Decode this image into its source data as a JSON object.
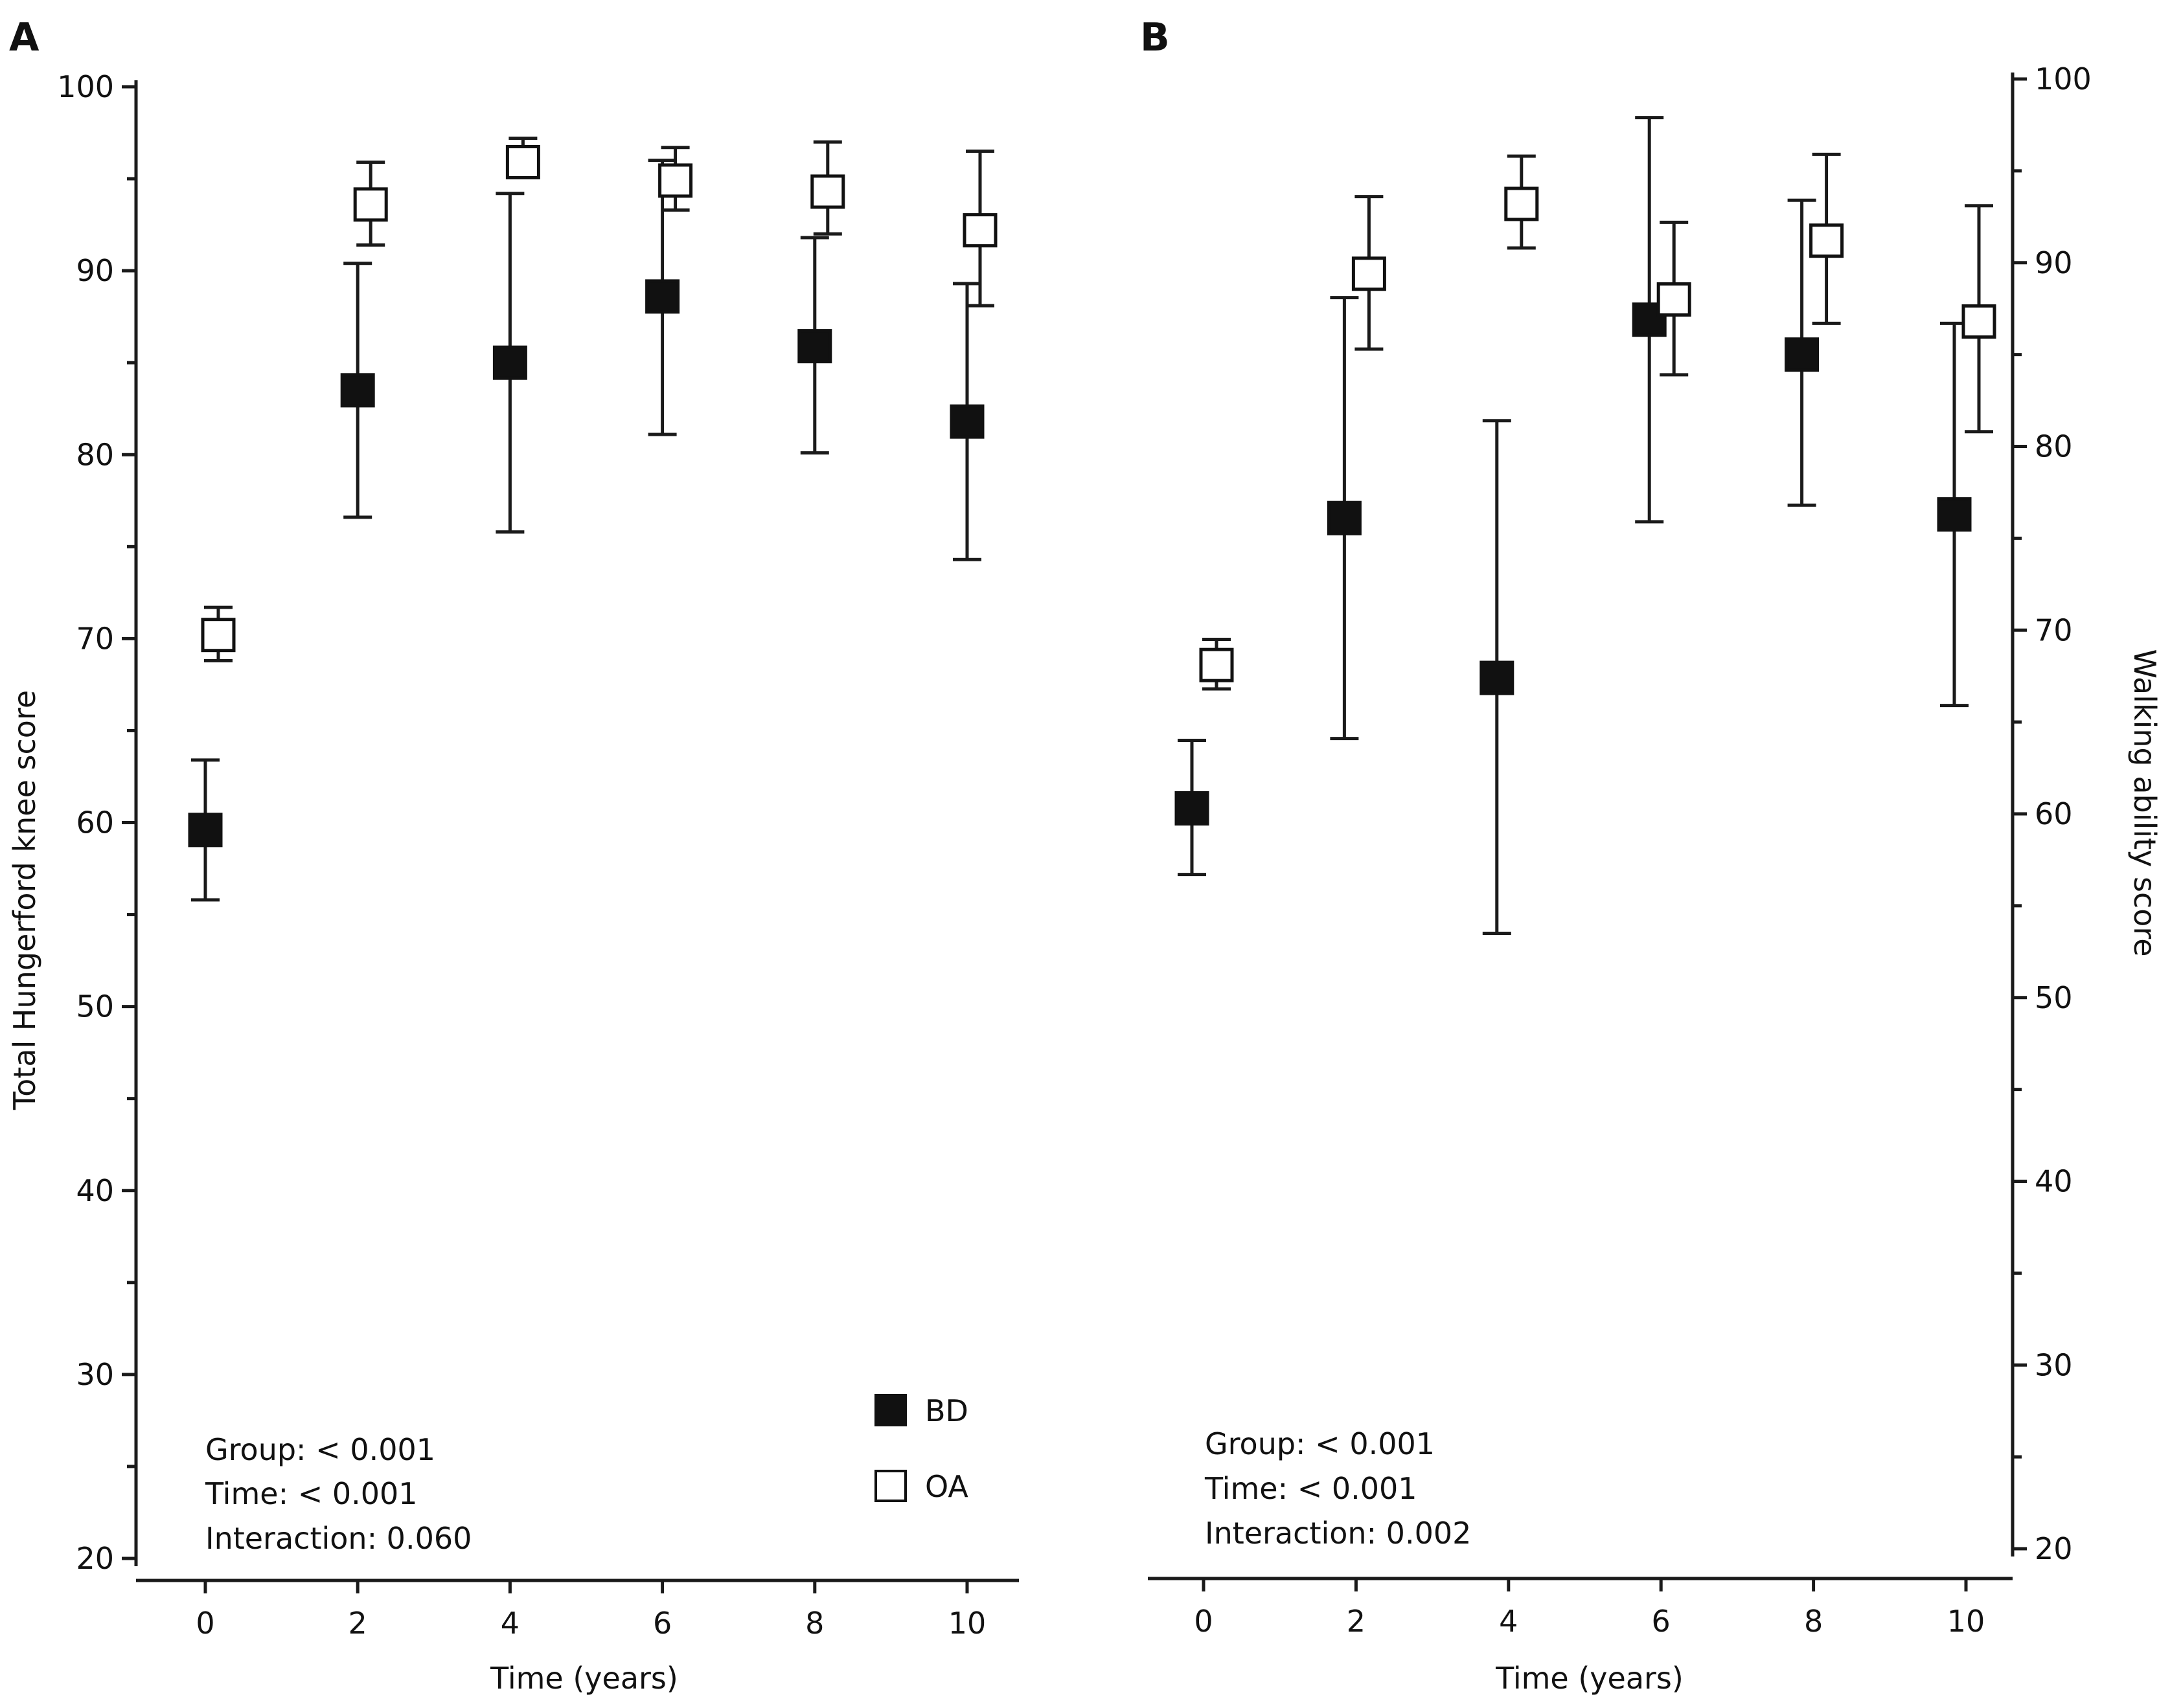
{
  "chart_data": [
    {
      "panel_label": "A",
      "type": "scatter",
      "xlabel": "Time (years)",
      "ylabel": "Total Hungerford knee score",
      "xlim": [
        0,
        10
      ],
      "ylim": [
        20,
        100
      ],
      "x_ticks": [
        "0",
        "2",
        "4",
        "6",
        "8",
        "10"
      ],
      "y_ticks": [
        "20",
        "30",
        "40",
        "50",
        "60",
        "70",
        "80",
        "90",
        "100"
      ],
      "y_axis_side": "left",
      "series": [
        {
          "name": "BD",
          "marker": "filled-square",
          "points": [
            {
              "x": 0,
              "y": 59.6,
              "lower": 55.8,
              "upper": 63.4
            },
            {
              "x": 2,
              "y": 83.5,
              "lower": 76.6,
              "upper": 90.4
            },
            {
              "x": 4,
              "y": 85.0,
              "lower": 75.8,
              "upper": 94.2
            },
            {
              "x": 6,
              "y": 88.6,
              "lower": 81.1,
              "upper": 96.0
            },
            {
              "x": 8,
              "y": 85.9,
              "lower": 80.1,
              "upper": 91.8
            },
            {
              "x": 10,
              "y": 81.8,
              "lower": 74.3,
              "upper": 89.3
            }
          ]
        },
        {
          "name": "OA",
          "marker": "open-square",
          "points": [
            {
              "x": 0,
              "y": 70.2,
              "lower": 68.8,
              "upper": 71.7
            },
            {
              "x": 2,
              "y": 93.6,
              "lower": 91.4,
              "upper": 95.9
            },
            {
              "x": 4,
              "y": 95.9,
              "lower": 95.5,
              "upper": 97.2
            },
            {
              "x": 6,
              "y": 94.9,
              "lower": 93.3,
              "upper": 96.7
            },
            {
              "x": 8,
              "y": 94.3,
              "lower": 92.0,
              "upper": 97.0
            },
            {
              "x": 10,
              "y": 92.2,
              "lower": 88.1,
              "upper": 96.5
            }
          ]
        }
      ],
      "legend": {
        "placement": "bottom-right",
        "items": [
          "BD",
          "OA"
        ]
      },
      "annotations": [
        "Group: < 0.001",
        "Time: < 0.001",
        "Interaction: 0.060"
      ]
    },
    {
      "panel_label": "B",
      "type": "scatter",
      "xlabel": "Time (years)",
      "ylabel": "Walking ability score",
      "xlim": [
        0,
        10
      ],
      "ylim": [
        20,
        100
      ],
      "x_ticks": [
        "0",
        "2",
        "4",
        "6",
        "8",
        "10"
      ],
      "y_ticks": [
        "20",
        "30",
        "40",
        "50",
        "60",
        "70",
        "80",
        "90",
        "100"
      ],
      "y_axis_side": "right",
      "series": [
        {
          "name": "BD",
          "marker": "filled-square",
          "points": [
            {
              "x": 0,
              "y": 60.3,
              "lower": 56.7,
              "upper": 64.0
            },
            {
              "x": 2,
              "y": 76.1,
              "lower": 64.1,
              "upper": 88.1
            },
            {
              "x": 4,
              "y": 67.4,
              "lower": 53.5,
              "upper": 81.4
            },
            {
              "x": 6,
              "y": 86.9,
              "lower": 75.9,
              "upper": 97.9
            },
            {
              "x": 8,
              "y": 85.0,
              "lower": 76.8,
              "upper": 93.4
            },
            {
              "x": 10,
              "y": 76.3,
              "lower": 65.9,
              "upper": 86.7
            }
          ]
        },
        {
          "name": "OA",
          "marker": "open-square",
          "points": [
            {
              "x": 0,
              "y": 68.1,
              "lower": 66.8,
              "upper": 69.5
            },
            {
              "x": 2,
              "y": 89.4,
              "lower": 85.3,
              "upper": 93.6
            },
            {
              "x": 4,
              "y": 93.2,
              "lower": 90.8,
              "upper": 95.8
            },
            {
              "x": 6,
              "y": 88.0,
              "lower": 83.9,
              "upper": 92.2
            },
            {
              "x": 8,
              "y": 91.2,
              "lower": 86.7,
              "upper": 95.9
            },
            {
              "x": 10,
              "y": 86.8,
              "lower": 80.8,
              "upper": 93.1
            }
          ]
        }
      ],
      "annotations": [
        "Group: < 0.001",
        "Time: < 0.001",
        "Interaction: 0.002"
      ]
    }
  ]
}
